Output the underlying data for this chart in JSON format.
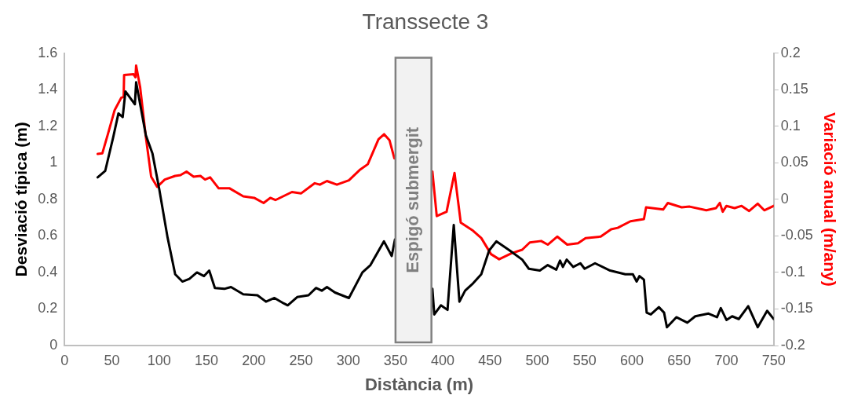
{
  "chart_data": {
    "type": "line",
    "title": "Transsecte 3",
    "xlabel": "Distància (m)",
    "ylabel": "Desviació típica (m)",
    "y2label": "Variació anual (m/any)",
    "xlim": [
      0,
      750
    ],
    "xticks": [
      0,
      50,
      100,
      150,
      200,
      250,
      300,
      350,
      400,
      450,
      500,
      550,
      600,
      650,
      700,
      750
    ],
    "ylim": [
      0,
      1.6
    ],
    "yticks": [
      0,
      0.2,
      0.4,
      0.6,
      0.8,
      1,
      1.2,
      1.4,
      1.6
    ],
    "y2lim": [
      -0.2,
      0.2
    ],
    "y2ticks": [
      -0.2,
      -0.15,
      -0.1,
      -0.05,
      0,
      0.05,
      0.1,
      0.15,
      0.2
    ],
    "grid": false,
    "legend": false,
    "marker": "none",
    "line_style": "solid",
    "bands": [
      {
        "axis": "x",
        "from": 350,
        "to": 388,
        "label": "Espigó submergit",
        "color": "#f2f2f2"
      }
    ],
    "series": [
      {
        "color": "#000000",
        "axis": "y",
        "x": [
          35,
          43,
          51.5,
          57,
          61.5,
          64.4,
          74.4,
          75.7,
          86,
          93,
          100,
          109,
          117,
          124.6,
          132,
          140,
          147.5,
          153,
          159,
          169,
          176,
          189,
          204,
          213,
          222,
          232,
          236,
          246,
          258,
          266,
          272,
          277.5,
          286,
          300.7,
          315,
          323.5,
          337.8,
          346,
          349.4,
          370,
          389,
          391,
          398,
          405,
          411.6,
          417.6,
          423.6,
          432,
          440.7,
          449,
          456.6,
          470.8,
          484,
          491,
          502.6,
          511,
          520,
          524,
          527,
          531,
          538,
          545.5,
          550,
          561,
          577,
          593,
          601,
          605,
          608,
          612.7,
          615.6,
          620,
          628.5,
          634,
          637,
          647,
          658.6,
          667,
          681,
          690,
          694,
          700,
          706,
          713,
          723,
          733,
          743,
          750
        ],
        "values": [
          0.92,
          0.955,
          1.14,
          1.27,
          1.25,
          1.39,
          1.32,
          1.44,
          1.15,
          1.05,
          0.86,
          0.59,
          0.39,
          0.35,
          0.365,
          0.4,
          0.38,
          0.41,
          0.315,
          0.31,
          0.32,
          0.28,
          0.275,
          0.24,
          0.26,
          0.23,
          0.22,
          0.265,
          0.275,
          0.315,
          0.3,
          0.32,
          0.29,
          0.26,
          0.4,
          0.44,
          0.57,
          0.49,
          0.58,
          null,
          0.31,
          0.17,
          0.22,
          0.195,
          0.66,
          0.24,
          0.3,
          0.34,
          0.39,
          0.52,
          0.57,
          0.52,
          0.47,
          0.42,
          0.41,
          0.44,
          0.415,
          0.465,
          0.43,
          0.47,
          0.43,
          0.45,
          0.42,
          0.45,
          0.41,
          0.39,
          0.39,
          0.35,
          0.38,
          0.36,
          0.18,
          0.17,
          0.21,
          0.18,
          0.1,
          0.155,
          0.125,
          0.16,
          0.175,
          0.155,
          0.205,
          0.14,
          0.16,
          0.145,
          0.215,
          0.1,
          0.19,
          0.145
        ]
      },
      {
        "color": "#ff0000",
        "axis": "y2",
        "x": [
          35,
          40,
          45.6,
          53,
          60,
          62.5,
          63,
          73,
          75,
          75.7,
          80,
          86,
          91.6,
          98,
          106,
          117,
          122.6,
          129,
          136.5,
          143.7,
          148.6,
          154,
          163,
          174.6,
          189,
          200.5,
          210.5,
          217.6,
          223,
          240.5,
          250,
          264.6,
          270,
          277.5,
          288,
          300.7,
          312,
          320.7,
          332,
          338,
          343.6,
          348.8,
          370,
          389,
          393.6,
          404,
          412.4,
          419,
          432,
          440.7,
          451,
          459.6,
          472.5,
          484,
          492,
          504,
          511,
          521,
          531.6,
          543,
          551,
          567,
          578,
          585,
          598.5,
          612.7,
          615,
          633,
          638,
          652.6,
          661,
          678.7,
          689,
          693,
          696,
          700,
          708.6,
          716,
          724,
          733,
          740,
          750
        ],
        "values": [
          0.062,
          0.063,
          0.088,
          0.122,
          0.139,
          0.14,
          0.17,
          0.171,
          0.167,
          0.183,
          0.153,
          0.085,
          0.031,
          0.017,
          0.027,
          0.032,
          0.033,
          0.038,
          0.031,
          0.032,
          0.027,
          0.03,
          0.015,
          0.015,
          0.004,
          0.002,
          -0.005,
          0.002,
          -0.001,
          0.01,
          0.008,
          0.022,
          0.02,
          0.025,
          0.02,
          0.026,
          0.04,
          0.048,
          0.082,
          0.089,
          0.081,
          0.056,
          null,
          0.038,
          -0.023,
          -0.017,
          0.036,
          -0.032,
          -0.043,
          -0.053,
          -0.075,
          -0.082,
          -0.074,
          -0.069,
          -0.059,
          -0.057,
          -0.062,
          -0.051,
          -0.062,
          -0.06,
          -0.053,
          -0.051,
          -0.041,
          -0.039,
          -0.03,
          -0.027,
          -0.011,
          -0.014,
          -0.005,
          -0.011,
          -0.01,
          -0.015,
          -0.012,
          -0.005,
          -0.017,
          -0.009,
          -0.012,
          -0.009,
          -0.016,
          -0.006,
          -0.015,
          -0.009
        ]
      }
    ]
  }
}
